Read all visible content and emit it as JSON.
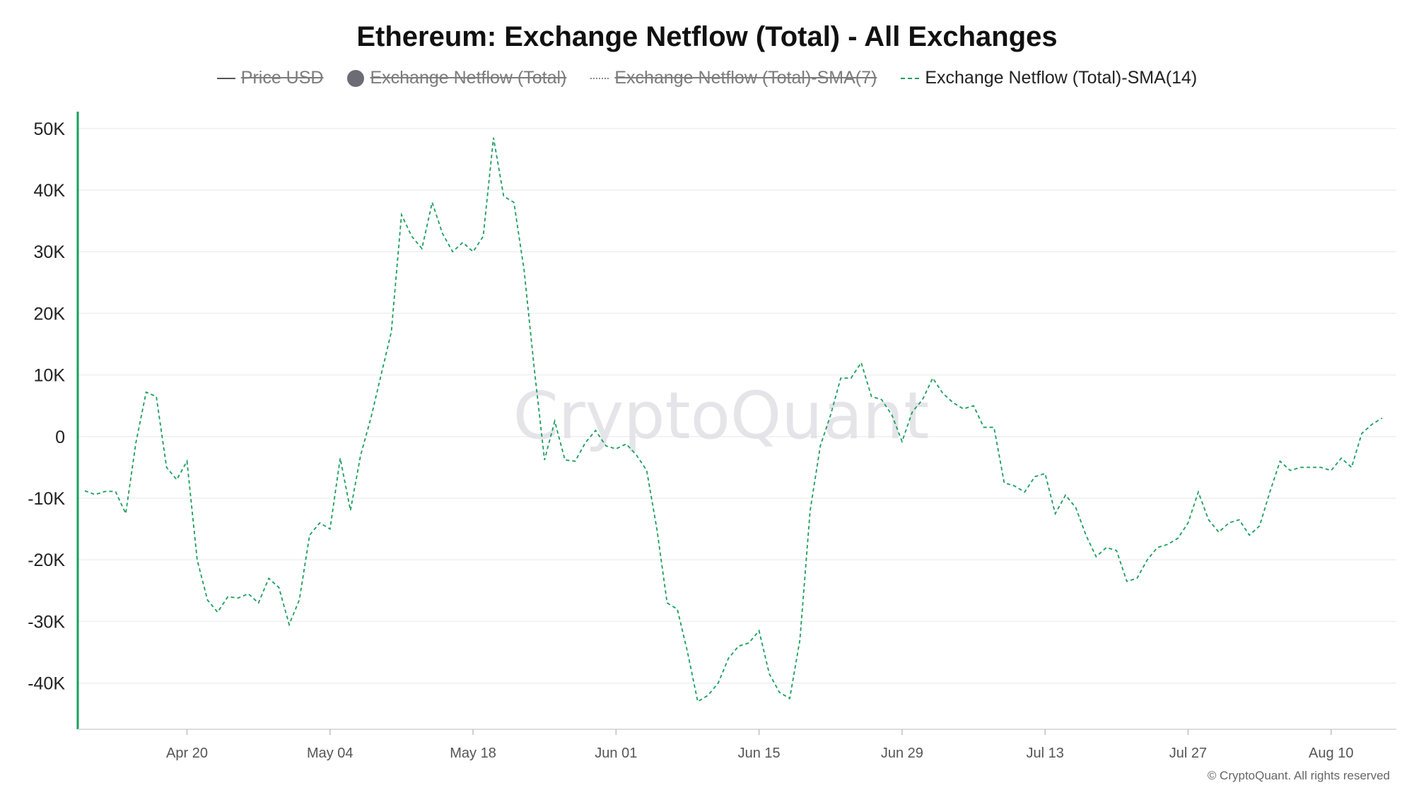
{
  "chart_data": {
    "type": "line",
    "title": "Ethereum: Exchange Netflow (Total) - All Exchanges",
    "legend": [
      {
        "name": "Price USD",
        "style": "solid",
        "color": "#555555",
        "hidden": true
      },
      {
        "name": "Exchange Netflow (Total)",
        "style": "dot",
        "color": "#6c6c74",
        "hidden": true
      },
      {
        "name": "Exchange Netflow (Total)-SMA(7)",
        "style": "dotted",
        "color": "#8a8a8a",
        "hidden": true
      },
      {
        "name": "Exchange Netflow (Total)-SMA(14)",
        "style": "dashed",
        "color": "#1a9e5c",
        "hidden": false
      }
    ],
    "legend_position": "top-center",
    "x_start": "2020-04-10",
    "x_ticks": [
      "Apr 20",
      "May 04",
      "May 18",
      "Jun 01",
      "Jun 15",
      "Jun 29",
      "Jul 13",
      "Jul 27",
      "Aug 10"
    ],
    "y_ticks": [
      "50K",
      "40K",
      "30K",
      "20K",
      "10K",
      "0",
      "-10K",
      "-20K",
      "-30K",
      "-40K"
    ],
    "y_tick_values": [
      50000,
      40000,
      30000,
      20000,
      10000,
      0,
      -10000,
      -20000,
      -30000,
      -40000
    ],
    "ylim": [
      -47500,
      52500
    ],
    "grid": true,
    "series": [
      {
        "name": "Exchange Netflow (Total)-SMA(14)",
        "color": "#1a9e5c",
        "dash": true,
        "values": [
          -8800,
          -9400,
          -8900,
          -8900,
          -12500,
          -1000,
          7200,
          6500,
          -5000,
          -7000,
          -4000,
          -20000,
          -26500,
          -28500,
          -26000,
          -26200,
          -25500,
          -27000,
          -23000,
          -24500,
          -30500,
          -26500,
          -16000,
          -14000,
          -15000,
          -3500,
          -12000,
          -3000,
          3000,
          10000,
          17000,
          36000,
          32500,
          30500,
          38000,
          33000,
          30000,
          31500,
          30000,
          32500,
          48500,
          39000,
          38000,
          27000,
          11000,
          -3800,
          2500,
          -3800,
          -4000,
          -1000,
          1000,
          -1500,
          -2000,
          -1200,
          -3000,
          -5500,
          -15000,
          -27000,
          -28000,
          -35000,
          -43000,
          -42000,
          -40000,
          -36000,
          -34000,
          -33500,
          -31500,
          -38500,
          -41500,
          -42500,
          -33000,
          -12000,
          -1500,
          3500,
          9500,
          9500,
          12000,
          6500,
          6000,
          3500,
          -800,
          4000,
          6000,
          9500,
          7000,
          5500,
          4500,
          5000,
          1500,
          1500,
          -7500,
          -8000,
          -9000,
          -6500,
          -6000,
          -12500,
          -9500,
          -11500,
          -16000,
          -19500,
          -18000,
          -18500,
          -23500,
          -23000,
          -20000,
          -18000,
          -17500,
          -16500,
          -14000,
          -9000,
          -13500,
          -15500,
          -14000,
          -13500,
          -16000,
          -14500,
          -9000,
          -4000,
          -5500,
          -5000,
          -5000,
          -5000,
          -5500,
          -3500,
          -5000,
          500,
          2000,
          3000
        ]
      }
    ]
  },
  "watermark": "CryptoQuant",
  "copyright": "© CryptoQuant. All rights reserved"
}
